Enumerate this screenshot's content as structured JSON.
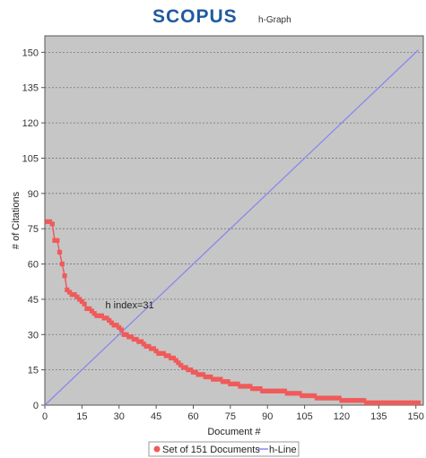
{
  "brand": {
    "logo_text": "SCOPUS",
    "subtitle": "h-Graph"
  },
  "colors": {
    "plot_bg": "#c6c6c6",
    "points": "#f05a5a",
    "h_line": "#8888ee",
    "brand": "#1f5a9f"
  },
  "chart_data": {
    "type": "scatter",
    "xlabel": "Document #",
    "ylabel": "# of Citations",
    "xlim": [
      0,
      153
    ],
    "ylim": [
      0,
      157
    ],
    "x_ticks": [
      0,
      15,
      30,
      45,
      60,
      75,
      90,
      105,
      120,
      135,
      150
    ],
    "y_ticks": [
      0,
      15,
      30,
      45,
      60,
      75,
      90,
      105,
      120,
      135,
      150
    ],
    "grid": true,
    "legend_position": "bottom",
    "annotation": {
      "text": "h index=31",
      "x": 31,
      "y": 42
    },
    "series": [
      {
        "name": "Set of 151 Documents",
        "kind": "scatter-line",
        "x": [
          1,
          2,
          3,
          4,
          5,
          6,
          7,
          8,
          9,
          10,
          11,
          12,
          13,
          14,
          15,
          16,
          17,
          18,
          19,
          20,
          21,
          22,
          23,
          24,
          25,
          26,
          27,
          28,
          29,
          30,
          31,
          32,
          33,
          34,
          35,
          36,
          37,
          38,
          39,
          40,
          41,
          42,
          43,
          44,
          45,
          46,
          47,
          48,
          49,
          50,
          51,
          52,
          53,
          54,
          55,
          56,
          57,
          58,
          59,
          60,
          61,
          62,
          63,
          64,
          65,
          66,
          67,
          68,
          69,
          70,
          71,
          72,
          73,
          74,
          75,
          76,
          77,
          78,
          79,
          80,
          81,
          82,
          83,
          84,
          85,
          86,
          87,
          88,
          89,
          90,
          91,
          92,
          93,
          94,
          95,
          96,
          97,
          98,
          99,
          100,
          101,
          102,
          103,
          104,
          105,
          106,
          107,
          108,
          109,
          110,
          111,
          112,
          113,
          114,
          115,
          116,
          117,
          118,
          119,
          120,
          121,
          122,
          123,
          124,
          125,
          126,
          127,
          128,
          129,
          130,
          131,
          132,
          133,
          134,
          135,
          136,
          137,
          138,
          139,
          140,
          141,
          142,
          143,
          144,
          145,
          146,
          147,
          148,
          149,
          150,
          151
        ],
        "y": [
          78,
          78,
          77,
          70,
          70,
          65,
          60,
          55,
          49,
          48,
          47,
          47,
          46,
          45,
          44,
          43,
          41,
          41,
          40,
          39,
          38,
          38,
          38,
          37,
          37,
          36,
          35,
          34,
          34,
          33,
          32,
          30,
          30,
          29,
          29,
          28,
          28,
          27,
          27,
          26,
          25,
          25,
          24,
          24,
          23,
          22,
          22,
          22,
          21,
          21,
          20,
          20,
          19,
          18,
          17,
          16,
          16,
          15,
          15,
          14,
          14,
          13,
          13,
          13,
          12,
          12,
          12,
          11,
          11,
          11,
          11,
          10,
          10,
          10,
          9,
          9,
          9,
          9,
          8,
          8,
          8,
          8,
          8,
          7,
          7,
          7,
          7,
          6,
          6,
          6,
          6,
          6,
          6,
          6,
          6,
          6,
          6,
          5,
          5,
          5,
          5,
          5,
          5,
          4,
          4,
          4,
          4,
          4,
          4,
          3,
          3,
          3,
          3,
          3,
          3,
          3,
          3,
          3,
          3,
          2,
          2,
          2,
          2,
          2,
          2,
          2,
          2,
          2,
          2,
          1,
          1,
          1,
          1,
          1,
          1,
          1,
          1,
          1,
          1,
          1,
          1,
          1,
          1,
          1,
          1,
          1,
          1,
          1,
          1,
          1,
          1
        ]
      },
      {
        "name": "h-Line",
        "kind": "line",
        "x": [
          0,
          151
        ],
        "y": [
          0,
          151
        ]
      }
    ]
  }
}
